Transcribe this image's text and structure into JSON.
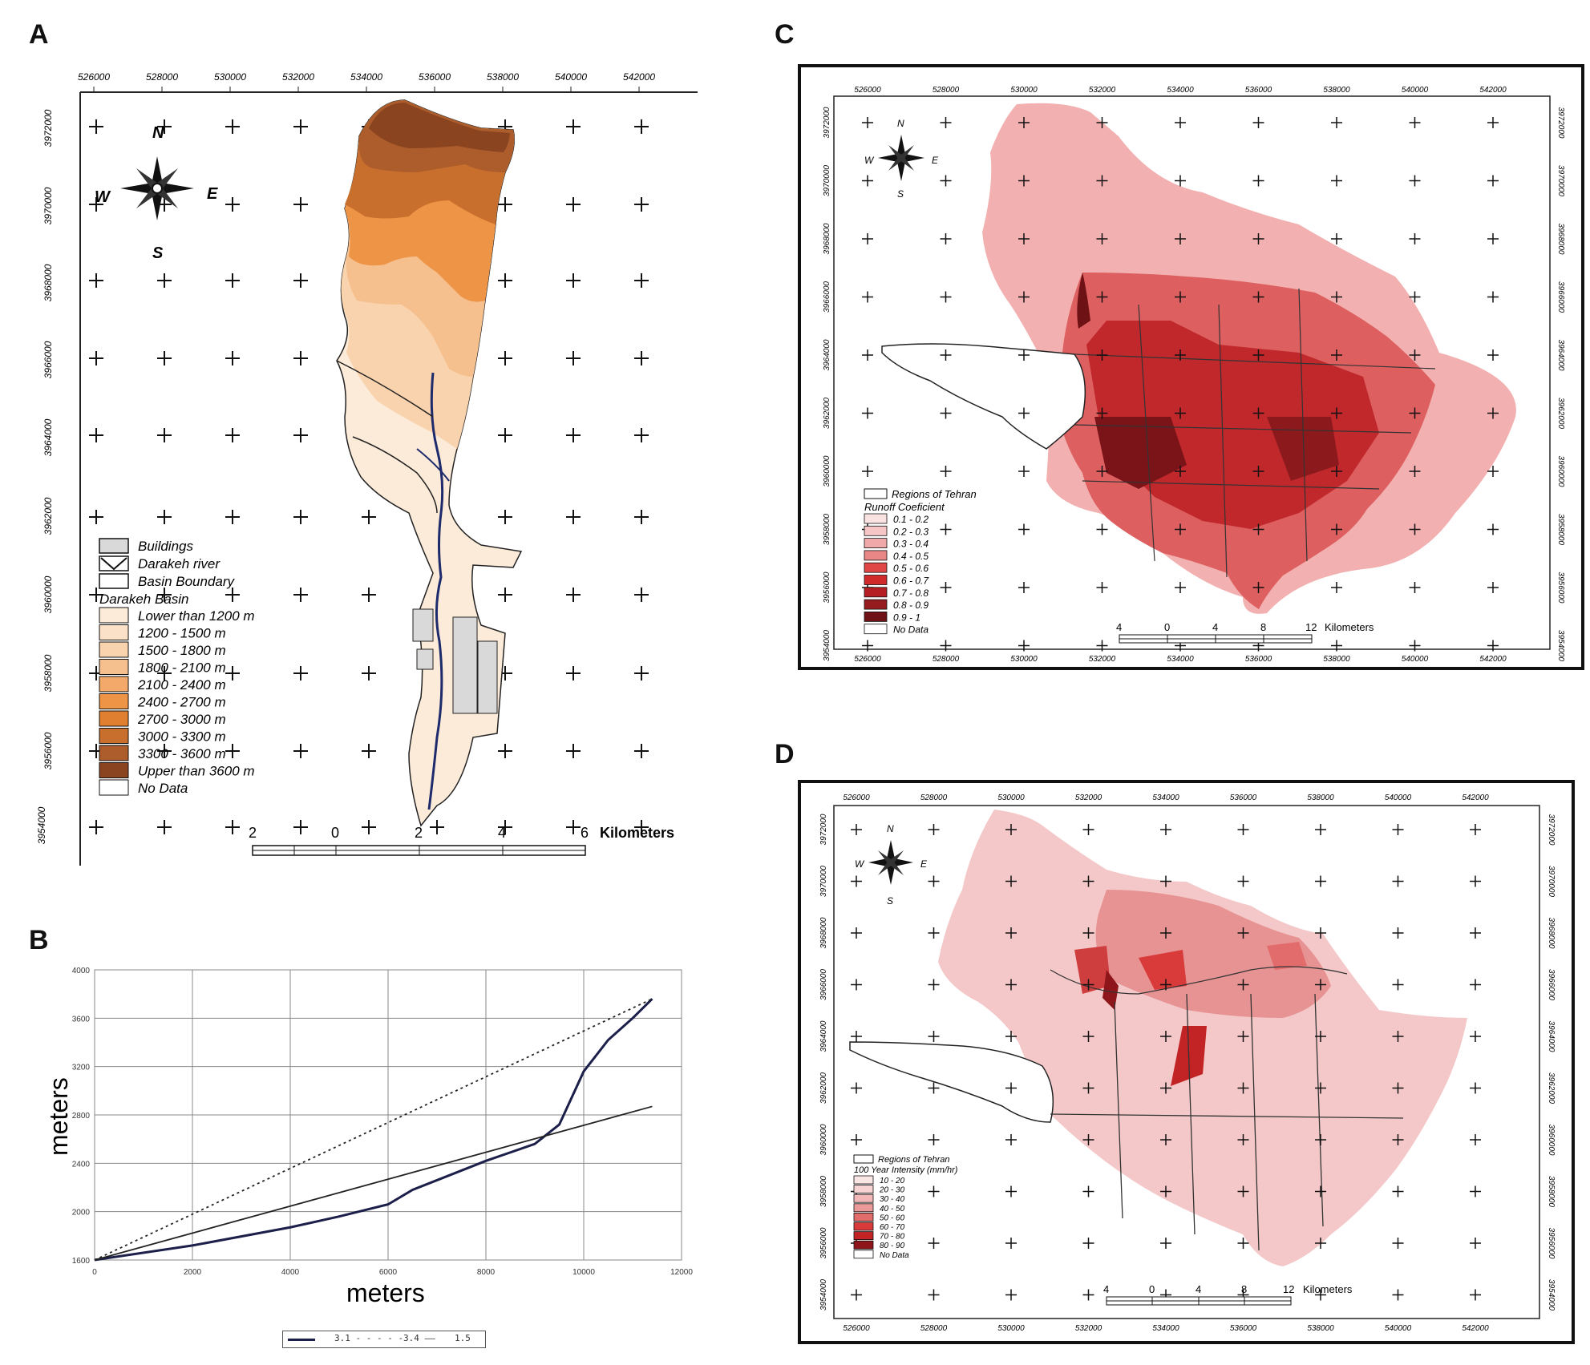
{
  "panels": {
    "a": "A",
    "b": "B",
    "c": "C",
    "d": "D"
  },
  "panel_a": {
    "top_ticks": [
      "526000",
      "528000",
      "530000",
      "532000",
      "534000",
      "536000",
      "538000",
      "540000",
      "542000"
    ],
    "left_ticks": [
      "3972000",
      "3970000",
      "3968000",
      "3966000",
      "3964000",
      "3962000",
      "3960000",
      "3958000",
      "3956000",
      "3954000"
    ],
    "compass": {
      "n": "N",
      "s": "S",
      "e": "E",
      "w": "W"
    },
    "legend": {
      "buildings": "Buildings",
      "river": "Darakeh river",
      "boundary": "Basin Boundary",
      "basin": "Darakeh Basin",
      "classes": [
        {
          "label": "Lower than 1200 m",
          "color": "#fcebd9"
        },
        {
          "label": "1200 - 1500 m",
          "color": "#fbe1c8"
        },
        {
          "label": "1500 - 1800 m",
          "color": "#f9d3ae"
        },
        {
          "label": "1800 - 2100 m",
          "color": "#f6c08e"
        },
        {
          "label": "2100 - 2400 m",
          "color": "#f2a96a"
        },
        {
          "label": "2400 - 2700 m",
          "color": "#ee9446"
        },
        {
          "label": "2700 - 3000 m",
          "color": "#e07f2f"
        },
        {
          "label": "3000 - 3300 m",
          "color": "#c96f2d"
        },
        {
          "label": "3300 - 3600 m",
          "color": "#ad5d2c"
        },
        {
          "label": "Upper than 3600 m",
          "color": "#8a4420"
        },
        {
          "label": "No Data",
          "color": "#ffffff"
        }
      ]
    },
    "scale": {
      "labels": [
        "2",
        "0",
        "2",
        "4",
        "6"
      ],
      "unit": "Kilometers"
    }
  },
  "panel_b": {
    "ylabel": "meters",
    "xlabel": "meters",
    "legend_items": [
      "3.1 - - - - -",
      "3.4 ——",
      "1.5"
    ]
  },
  "chart_data": {
    "type": "line",
    "xlabel": "meters",
    "ylabel": "meters",
    "xlim": [
      0,
      12000
    ],
    "ylim": [
      1600,
      4000
    ],
    "xticks": [
      "0",
      "2000",
      "4000",
      "6000",
      "8000",
      "10000",
      "12000"
    ],
    "yticks": [
      "1600",
      "2000",
      "2400",
      "2800",
      "3200",
      "3600",
      "4000"
    ],
    "grid": true,
    "legend_position": "bottom",
    "series": [
      {
        "name": "3.1",
        "style": "solid",
        "color": "#1b1f4a",
        "x": [
          0,
          2000,
          4000,
          5000,
          6000,
          6500,
          7000,
          8000,
          9000,
          9500,
          10000,
          10500,
          11000,
          11400
        ],
        "y": [
          1600,
          1720,
          1870,
          1960,
          2060,
          2180,
          2260,
          2420,
          2560,
          2720,
          3160,
          3420,
          3600,
          3760
        ]
      },
      {
        "name": "3.4",
        "style": "dashed",
        "color": "#222222",
        "x": [
          0,
          11400
        ],
        "y": [
          1600,
          3760
        ]
      },
      {
        "name": "1.5",
        "style": "solid",
        "color": "#222222",
        "x": [
          0,
          11400
        ],
        "y": [
          1600,
          2870
        ]
      }
    ]
  },
  "panel_c": {
    "top_ticks": [
      "526000",
      "528000",
      "530000",
      "532000",
      "534000",
      "536000",
      "538000",
      "540000",
      "542000"
    ],
    "side_ticks": [
      "3972000",
      "3970000",
      "3968000",
      "3966000",
      "3964000",
      "3962000",
      "3960000",
      "3958000",
      "3956000",
      "3954000"
    ],
    "compass": {
      "n": "N",
      "s": "S",
      "e": "E",
      "w": "W"
    },
    "legend": {
      "regions": "Regions of Tehran",
      "title": "Runoff Coeficient",
      "classes": [
        {
          "label": "0.1 - 0.2",
          "color": "#fbe2e2"
        },
        {
          "label": "0.2 - 0.3",
          "color": "#f6c6c6"
        },
        {
          "label": "0.3 - 0.4",
          "color": "#f0a8a8"
        },
        {
          "label": "0.4 - 0.5",
          "color": "#e98787"
        },
        {
          "label": "0.5 - 0.6",
          "color": "#e04646"
        },
        {
          "label": "0.6 - 0.7",
          "color": "#d02a2a"
        },
        {
          "label": "0.7 - 0.8",
          "color": "#b51f23"
        },
        {
          "label": "0.8 - 0.9",
          "color": "#951b1f"
        },
        {
          "label": "0.9 - 1",
          "color": "#6e1216"
        },
        {
          "label": "No Data",
          "color": "#ffffff"
        }
      ]
    },
    "scale": {
      "labels": [
        "4",
        "0",
        "4",
        "8",
        "12"
      ],
      "unit": "Kilometers"
    }
  },
  "panel_d": {
    "top_ticks": [
      "526000",
      "528000",
      "530000",
      "532000",
      "534000",
      "536000",
      "538000",
      "540000",
      "542000"
    ],
    "side_ticks": [
      "3972000",
      "3970000",
      "3968000",
      "3966000",
      "3964000",
      "3962000",
      "3960000",
      "3958000",
      "3956000",
      "3954000"
    ],
    "compass": {
      "n": "N",
      "s": "S",
      "e": "E",
      "w": "W"
    },
    "legend": {
      "regions": "Regions of Tehran",
      "title": "100 Year Intensity (mm/hr)",
      "classes": [
        {
          "label": "10 - 20",
          "color": "#fbe6e6"
        },
        {
          "label": "20 - 30",
          "color": "#f7d3d3"
        },
        {
          "label": "30 - 40",
          "color": "#f2b8b8"
        },
        {
          "label": "40 - 50",
          "color": "#eb9a9a"
        },
        {
          "label": "50 - 60",
          "color": "#e26b6b"
        },
        {
          "label": "60 - 70",
          "color": "#d93a3a"
        },
        {
          "label": "70 - 80",
          "color": "#c22325"
        },
        {
          "label": "80 - 90",
          "color": "#8e161a"
        },
        {
          "label": "No Data",
          "color": "#ffffff"
        }
      ]
    },
    "scale": {
      "labels": [
        "4",
        "0",
        "4",
        "8",
        "12"
      ],
      "unit": "Kilometers"
    }
  }
}
